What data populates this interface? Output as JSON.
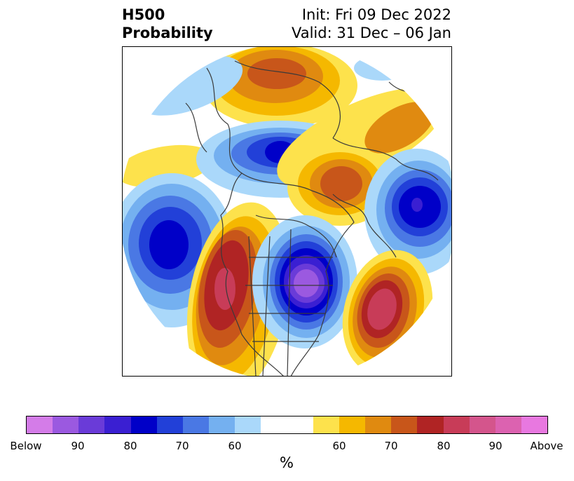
{
  "title": {
    "left_line1": "H500",
    "left_line2": "Probability",
    "right_line1": "Init: Fri 09 Dec 2022",
    "right_line2": "Valid: 31 Dec – 06 Jan"
  },
  "colorbar": {
    "colors": [
      "#d47ce8",
      "#9b59e0",
      "#6a3bd8",
      "#3a1fd2",
      "#0000c8",
      "#2240d8",
      "#4a78e4",
      "#74b0f0",
      "#aad8fa",
      "#ffffff",
      "#ffffff",
      "#fde24c",
      "#f5b800",
      "#e08a10",
      "#c8561a",
      "#b02424",
      "#c83c58",
      "#d4558c",
      "#dc62b0",
      "#e878e0"
    ],
    "tick_labels": [
      "Below",
      "90",
      "80",
      "70",
      "60",
      "60",
      "70",
      "80",
      "90",
      "Above"
    ],
    "label": "%"
  },
  "map": {
    "projection": "north-polar-stereographic",
    "variable": "500mb height probability"
  }
}
